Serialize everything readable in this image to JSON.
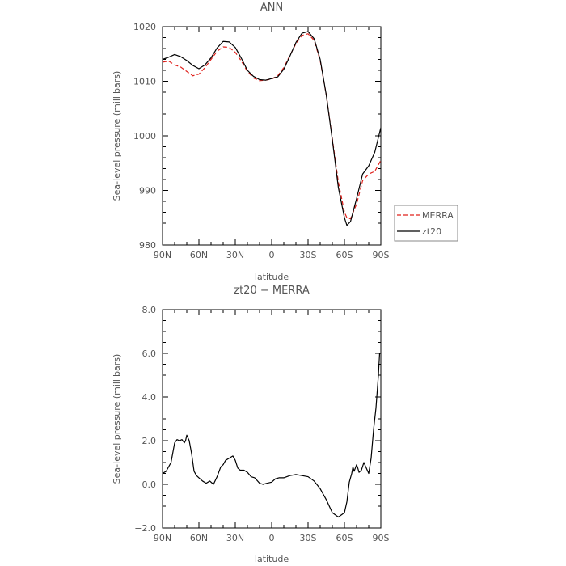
{
  "chart_data": [
    {
      "type": "line",
      "title": "ANN",
      "xlabel": "latitude",
      "ylabel": "Sea-level pressure (millibars)",
      "x_ticks": [
        {
          "value": 90,
          "label": "90N"
        },
        {
          "value": 60,
          "label": "60N"
        },
        {
          "value": 30,
          "label": "30N"
        },
        {
          "value": 0,
          "label": "0"
        },
        {
          "value": -30,
          "label": "30S"
        },
        {
          "value": -60,
          "label": "60S"
        },
        {
          "value": -90,
          "label": "90S"
        }
      ],
      "y_ticks": [
        {
          "value": 980,
          "label": "980"
        },
        {
          "value": 990,
          "label": "990"
        },
        {
          "value": 1000,
          "label": "1000"
        },
        {
          "value": 1010,
          "label": "1010"
        },
        {
          "value": 1020,
          "label": "1020"
        }
      ],
      "xlim": [
        90,
        -90
      ],
      "ylim": [
        980,
        1020
      ],
      "grid": false,
      "legend": {
        "placement": "right",
        "entries": [
          "MERRA",
          "zt20"
        ]
      },
      "series": [
        {
          "name": "MERRA",
          "color": "#e0201b",
          "dashed": true,
          "x": [
            90,
            85,
            80,
            75,
            70,
            65,
            60,
            55,
            50,
            45,
            40,
            35,
            30,
            25,
            20,
            15,
            10,
            5,
            0,
            -5,
            -10,
            -15,
            -20,
            -25,
            -30,
            -35,
            -40,
            -45,
            -50,
            -55,
            -60,
            -62,
            -65,
            -70,
            -75,
            -80,
            -85,
            -90
          ],
          "y": [
            1013.5,
            1013.7,
            1013.0,
            1012.6,
            1011.8,
            1011.0,
            1011.3,
            1012.5,
            1014.0,
            1015.5,
            1016.3,
            1016.2,
            1015.3,
            1013.7,
            1011.8,
            1010.6,
            1010.1,
            1010.2,
            1010.4,
            1011.0,
            1012.5,
            1014.7,
            1016.9,
            1018.4,
            1018.7,
            1017.5,
            1013.8,
            1007.5,
            999.5,
            991.5,
            986.0,
            985.0,
            984.8,
            987.5,
            991.8,
            993.0,
            993.5,
            995.5
          ]
        },
        {
          "name": "zt20",
          "color": "#000000",
          "dashed": false,
          "x": [
            90,
            85,
            80,
            75,
            70,
            65,
            60,
            55,
            50,
            45,
            40,
            35,
            30,
            25,
            20,
            15,
            10,
            5,
            0,
            -5,
            -10,
            -15,
            -20,
            -25,
            -30,
            -35,
            -40,
            -45,
            -50,
            -55,
            -60,
            -62,
            -65,
            -70,
            -75,
            -80,
            -85,
            -90
          ],
          "y": [
            1014.0,
            1014.4,
            1014.9,
            1014.5,
            1013.8,
            1012.9,
            1012.3,
            1013.0,
            1014.3,
            1016.1,
            1017.3,
            1017.2,
            1016.2,
            1014.2,
            1012.0,
            1010.9,
            1010.3,
            1010.2,
            1010.5,
            1010.8,
            1012.2,
            1014.6,
            1017.1,
            1018.8,
            1019.1,
            1017.8,
            1014.0,
            1007.5,
            999.3,
            990.5,
            985.0,
            983.6,
            984.3,
            988.5,
            993.0,
            994.5,
            997.0,
            1001.5
          ]
        }
      ]
    },
    {
      "type": "line",
      "title": "zt20 − MERRA",
      "xlabel": "latitude",
      "ylabel": "Sea-level pressure (millibars)",
      "x_ticks": [
        {
          "value": 90,
          "label": "90N"
        },
        {
          "value": 60,
          "label": "60N"
        },
        {
          "value": 30,
          "label": "30N"
        },
        {
          "value": 0,
          "label": "0"
        },
        {
          "value": -30,
          "label": "30S"
        },
        {
          "value": -60,
          "label": "60S"
        },
        {
          "value": -90,
          "label": "90S"
        }
      ],
      "y_ticks": [
        {
          "value": -2,
          "label": "−2.0"
        },
        {
          "value": 0,
          "label": "0.0"
        },
        {
          "value": 2,
          "label": "2.0"
        },
        {
          "value": 4,
          "label": "4.0"
        },
        {
          "value": 6,
          "label": "6.0"
        },
        {
          "value": 8,
          "label": "8.0"
        }
      ],
      "xlim": [
        90,
        -90
      ],
      "ylim": [
        -2,
        8
      ],
      "grid": false,
      "series": [
        {
          "name": "",
          "color": "#000000",
          "dashed": false,
          "x": [
            90,
            87,
            83,
            80,
            78,
            76,
            74,
            72,
            71,
            70,
            68,
            66,
            64,
            62,
            60,
            57,
            54,
            51,
            48,
            45,
            42,
            40,
            38,
            35,
            32,
            30,
            28,
            26,
            23,
            20,
            17,
            14,
            10,
            7,
            4,
            0,
            -3,
            -6,
            -10,
            -15,
            -20,
            -25,
            -30,
            -35,
            -40,
            -45,
            -50,
            -55,
            -60,
            -62,
            -64,
            -66,
            -67,
            -68,
            -70,
            -71,
            -72,
            -74,
            -76,
            -78,
            -80,
            -82,
            -84,
            -86,
            -88,
            -89,
            -90
          ],
          "y": [
            0.5,
            0.6,
            1.0,
            1.9,
            2.05,
            2.0,
            2.05,
            1.9,
            2.0,
            2.25,
            2.0,
            1.4,
            0.6,
            0.4,
            0.3,
            0.15,
            0.05,
            0.15,
            0.0,
            0.35,
            0.8,
            0.9,
            1.1,
            1.2,
            1.3,
            1.1,
            0.75,
            0.65,
            0.65,
            0.55,
            0.35,
            0.3,
            0.05,
            0.0,
            0.05,
            0.1,
            0.25,
            0.3,
            0.3,
            0.4,
            0.45,
            0.4,
            0.35,
            0.15,
            -0.2,
            -0.7,
            -1.3,
            -1.5,
            -1.3,
            -0.8,
            0.1,
            0.5,
            0.8,
            0.6,
            0.9,
            0.75,
            0.55,
            0.65,
            1.0,
            0.75,
            0.5,
            1.2,
            2.5,
            3.5,
            5.0,
            6.0,
            6.0
          ]
        }
      ]
    }
  ]
}
